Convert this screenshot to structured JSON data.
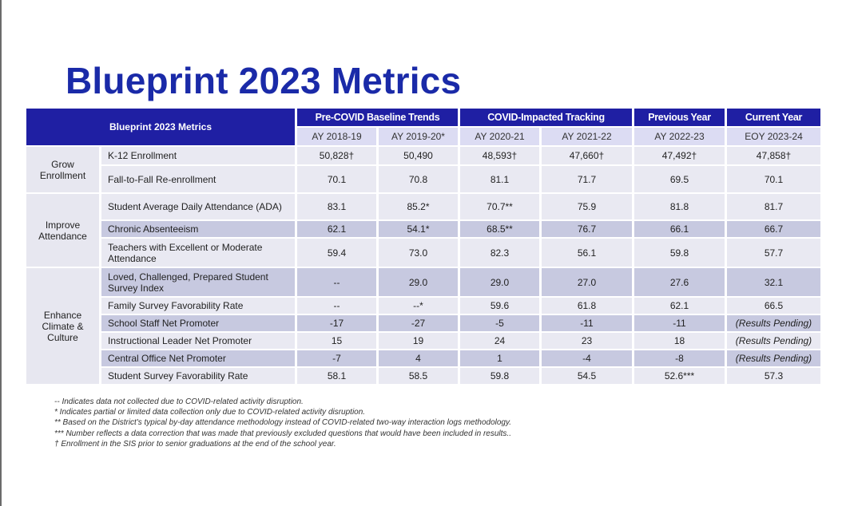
{
  "title": "Blueprint 2023 Metrics",
  "table": {
    "corner_label": "Blueprint 2023 Metrics",
    "groups": [
      {
        "label": "Pre-COVID Baseline Trends"
      },
      {
        "label": "COVID-Impacted Tracking"
      },
      {
        "label": "Previous Year"
      },
      {
        "label": "Current Year"
      }
    ],
    "years": [
      "AY 2018-19",
      "AY 2019-20*",
      "AY 2020-21",
      "AY 2021-22",
      "AY 2022-23",
      "EOY 2023-24"
    ],
    "sections": [
      {
        "label": "Grow\nEnrollment"
      },
      {
        "label": "Improve\nAttendance"
      },
      {
        "label": "Enhance\nClimate &\nCulture"
      }
    ],
    "rows": [
      {
        "metric": "K-12 Enrollment",
        "values": [
          "50,828†",
          "50,490",
          "48,593†",
          "47,660†",
          "47,492†",
          "47,858†"
        ]
      },
      {
        "metric": "Fall-to-Fall Re-enrollment",
        "values": [
          "70.1",
          "70.8",
          "81.1",
          "71.7",
          "69.5",
          "70.1"
        ]
      },
      {
        "metric": "Student Average Daily Attendance (ADA)",
        "values": [
          "83.1",
          "85.2*",
          "70.7**",
          "75.9",
          "81.8",
          "81.7"
        ]
      },
      {
        "metric": "Chronic Absenteeism",
        "values": [
          "62.1",
          "54.1*",
          "68.5**",
          "76.7",
          "66.1",
          "66.7"
        ]
      },
      {
        "metric": "Teachers with Excellent or Moderate Attendance",
        "values": [
          "59.4",
          "73.0",
          "82.3",
          "56.1",
          "59.8",
          "57.7"
        ]
      },
      {
        "metric": "Loved, Challenged, Prepared Student Survey Index",
        "values": [
          "--",
          "29.0",
          "29.0",
          "27.0",
          "27.6",
          "32.1"
        ]
      },
      {
        "metric": "Family Survey Favorability Rate",
        "values": [
          "--",
          "--*",
          "59.6",
          "61.8",
          "62.1",
          "66.5"
        ]
      },
      {
        "metric": "School Staff Net Promoter",
        "values": [
          "-17",
          "-27",
          "-5",
          "-11",
          "-11",
          "(Results Pending)"
        ]
      },
      {
        "metric": "Instructional Leader Net Promoter",
        "values": [
          "15",
          "19",
          "24",
          "23",
          "18",
          "(Results Pending)"
        ]
      },
      {
        "metric": "Central Office Net Promoter",
        "values": [
          "-7",
          "4",
          "1",
          "-4",
          "-8",
          "(Results Pending)"
        ]
      },
      {
        "metric": "Student Survey Favorability Rate",
        "values": [
          "58.1",
          "58.5",
          "59.8",
          "54.5",
          "52.6***",
          "57.3"
        ]
      }
    ]
  },
  "footnotes": [
    "-- Indicates data not collected due to COVID-related activity disruption.",
    "*  Indicates partial or limited data collection only due to COVID-related activity disruption.",
    "** Based on the District's typical by-day attendance methodology instead of COVID-related two-way interaction logs methodology.",
    "*** Number reflects a data correction that was made that previously excluded questions that would have been included in results..",
    "† Enrollment in the SIS prior to senior graduations at the end of the school year."
  ],
  "colors": {
    "title": "#1a2aa8",
    "header": "#1f1fa3",
    "subheader": "#dcdcf3",
    "row_light": "#e9e9f2",
    "row_dark": "#c7c9e0"
  }
}
